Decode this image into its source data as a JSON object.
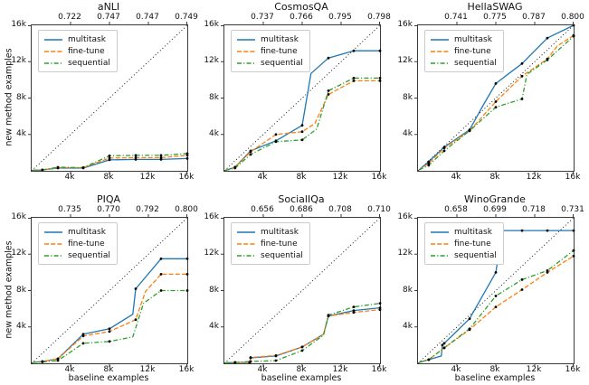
{
  "legend": {
    "entries": [
      "multitask",
      "fine-tune",
      "sequential"
    ]
  },
  "series_styles": [
    {
      "name": "multitask",
      "color": "#1f77b4",
      "dash": "solid"
    },
    {
      "name": "fine-tune",
      "color": "#ff7f0e",
      "dash": "dashed"
    },
    {
      "name": "sequential",
      "color": "#2ca02c",
      "dash": "dashdot"
    }
  ],
  "axes": {
    "xlabel": "baseline examples",
    "ylabel": "new method examples",
    "x_tick_labels": [
      "4k",
      "8k",
      "12k",
      "16k"
    ],
    "y_tick_labels": [
      "16k",
      "12k",
      "8k",
      "4k"
    ],
    "xlim": [
      0,
      16000
    ],
    "ylim": [
      0,
      16000
    ],
    "diagonal_reference_line": "dotted black y=x",
    "units": "points are in thousands of examples"
  },
  "marker": {
    "color": "#000000",
    "x_positions_k": [
      1.1,
      2.7,
      5.3,
      8,
      10.7,
      13.3,
      16
    ]
  },
  "chart_data": [
    {
      "type": "line",
      "title": "aNLI",
      "top_ticks": [
        "0.722",
        "0.747",
        "0.747",
        "0.749"
      ],
      "series": [
        {
          "name": "multitask",
          "points_k": [
            [
              0.1,
              0.05
            ],
            [
              1.1,
              0.1
            ],
            [
              2.7,
              0.3
            ],
            [
              5.3,
              0.3
            ],
            [
              8,
              1.2
            ],
            [
              10.7,
              1.25
            ],
            [
              13.3,
              1.25
            ],
            [
              16,
              1.35
            ]
          ]
        },
        {
          "name": "fine-tune",
          "points_k": [
            [
              0.1,
              0.05
            ],
            [
              1.1,
              0.1
            ],
            [
              2.7,
              0.35
            ],
            [
              5.3,
              0.35
            ],
            [
              8,
              1.4
            ],
            [
              10.7,
              1.45
            ],
            [
              13.3,
              1.45
            ],
            [
              16,
              1.7
            ]
          ]
        },
        {
          "name": "sequential",
          "points_k": [
            [
              0.1,
              0.05
            ],
            [
              1.1,
              0.1
            ],
            [
              2.7,
              0.4
            ],
            [
              5.3,
              0.35
            ],
            [
              8,
              1.65
            ],
            [
              10.7,
              1.7
            ],
            [
              13.3,
              1.7
            ],
            [
              16,
              1.9
            ]
          ]
        }
      ]
    },
    {
      "type": "line",
      "title": "CosmosQA",
      "top_ticks": [
        "0.737",
        "0.766",
        "0.795",
        "0.798"
      ],
      "series": [
        {
          "name": "multitask",
          "points_k": [
            [
              0.1,
              0.05
            ],
            [
              1.1,
              0.4
            ],
            [
              2.7,
              2.2
            ],
            [
              5.3,
              3.3
            ],
            [
              8,
              5.0
            ],
            [
              8.9,
              10.7
            ],
            [
              10.7,
              12.4
            ],
            [
              13.3,
              13.2
            ],
            [
              16,
              13.2
            ]
          ]
        },
        {
          "name": "fine-tune",
          "points_k": [
            [
              0.1,
              0.05
            ],
            [
              1.1,
              0.4
            ],
            [
              2.7,
              2.1
            ],
            [
              5.3,
              4.0
            ],
            [
              8,
              4.3
            ],
            [
              9.3,
              5.2
            ],
            [
              10.7,
              8.4
            ],
            [
              13.3,
              9.9
            ],
            [
              16,
              9.9
            ]
          ]
        },
        {
          "name": "sequential",
          "points_k": [
            [
              0.1,
              0.05
            ],
            [
              1.1,
              0.3
            ],
            [
              2.7,
              1.8
            ],
            [
              5.3,
              3.2
            ],
            [
              8,
              3.4
            ],
            [
              9.5,
              4.6
            ],
            [
              10.7,
              8.8
            ],
            [
              13.3,
              10.2
            ],
            [
              16,
              10.2
            ]
          ]
        }
      ]
    },
    {
      "type": "line",
      "title": "HellaSWAG",
      "top_ticks": [
        "0.741",
        "0.775",
        "0.787",
        "0.800"
      ],
      "series": [
        {
          "name": "multitask",
          "points_k": [
            [
              0.1,
              0.1
            ],
            [
              1.1,
              1.0
            ],
            [
              2.7,
              2.6
            ],
            [
              5.3,
              4.5
            ],
            [
              6.7,
              7.2
            ],
            [
              8,
              9.6
            ],
            [
              10.7,
              11.8
            ],
            [
              13.3,
              14.6
            ],
            [
              16,
              16
            ]
          ]
        },
        {
          "name": "fine-tune",
          "points_k": [
            [
              0.1,
              0.1
            ],
            [
              1.1,
              0.8
            ],
            [
              2.7,
              2.5
            ],
            [
              5.3,
              4.4
            ],
            [
              8,
              7.6
            ],
            [
              10.7,
              10.4
            ],
            [
              13.3,
              12.3
            ],
            [
              14.3,
              13.7
            ],
            [
              16,
              14.9
            ]
          ]
        },
        {
          "name": "sequential",
          "points_k": [
            [
              0.1,
              0.1
            ],
            [
              1.1,
              0.6
            ],
            [
              2.7,
              2.2
            ],
            [
              5.3,
              4.4
            ],
            [
              8,
              7.0
            ],
            [
              10.7,
              7.9
            ],
            [
              11.2,
              10.6
            ],
            [
              13.3,
              12.2
            ],
            [
              16,
              14.8
            ]
          ]
        }
      ]
    },
    {
      "type": "line",
      "title": "PIQA",
      "top_ticks": [
        "0.735",
        "0.770",
        "0.792",
        "0.800"
      ],
      "series": [
        {
          "name": "multitask",
          "points_k": [
            [
              0.1,
              0.1
            ],
            [
              1.1,
              0.2
            ],
            [
              2.7,
              0.5
            ],
            [
              5.3,
              3.2
            ],
            [
              8,
              3.8
            ],
            [
              10.4,
              5.4
            ],
            [
              10.7,
              8.2
            ],
            [
              13.3,
              11.5
            ],
            [
              16,
              11.5
            ]
          ]
        },
        {
          "name": "fine-tune",
          "points_k": [
            [
              0.1,
              0.1
            ],
            [
              1.1,
              0.2
            ],
            [
              2.7,
              0.5
            ],
            [
              5.3,
              3.0
            ],
            [
              8,
              3.5
            ],
            [
              10.7,
              4.8
            ],
            [
              11.7,
              7.9
            ],
            [
              13.3,
              9.8
            ],
            [
              16,
              9.8
            ]
          ]
        },
        {
          "name": "sequential",
          "points_k": [
            [
              0.1,
              0.1
            ],
            [
              1.1,
              0.15
            ],
            [
              2.7,
              0.3
            ],
            [
              5.3,
              2.2
            ],
            [
              8,
              2.4
            ],
            [
              10.4,
              2.9
            ],
            [
              11.5,
              6.6
            ],
            [
              13.3,
              8.0
            ],
            [
              16,
              8.0
            ]
          ]
        }
      ]
    },
    {
      "type": "line",
      "title": "SocialIQa",
      "top_ticks": [
        "0.656",
        "0.686",
        "0.708",
        "0.710"
      ],
      "series": [
        {
          "name": "multitask",
          "points_k": [
            [
              0.1,
              0.05
            ],
            [
              1.1,
              0.1
            ],
            [
              2.6,
              0.1
            ],
            [
              2.7,
              0.6
            ],
            [
              5.3,
              0.8
            ],
            [
              8,
              1.8
            ],
            [
              10.2,
              3.2
            ],
            [
              10.7,
              5.2
            ],
            [
              13.3,
              5.8
            ],
            [
              16,
              6.1
            ]
          ]
        },
        {
          "name": "fine-tune",
          "points_k": [
            [
              0.1,
              0.05
            ],
            [
              1.1,
              0.1
            ],
            [
              2.6,
              0.1
            ],
            [
              2.7,
              0.65
            ],
            [
              5.3,
              0.85
            ],
            [
              8,
              1.8
            ],
            [
              10.2,
              3.2
            ],
            [
              10.7,
              5.2
            ],
            [
              13.3,
              5.6
            ],
            [
              16,
              5.9
            ]
          ]
        },
        {
          "name": "sequential",
          "points_k": [
            [
              0.1,
              0.05
            ],
            [
              1.1,
              0.1
            ],
            [
              2.7,
              0.2
            ],
            [
              5.3,
              0.3
            ],
            [
              8,
              1.4
            ],
            [
              10.2,
              3.1
            ],
            [
              10.7,
              5.3
            ],
            [
              13.3,
              6.2
            ],
            [
              16,
              6.6
            ]
          ]
        }
      ]
    },
    {
      "type": "line",
      "title": "WinoGrande",
      "top_ticks": [
        "0.658",
        "0.699",
        "0.718",
        "0.731"
      ],
      "series": [
        {
          "name": "multitask",
          "points_k": [
            [
              0.1,
              0.1
            ],
            [
              1.1,
              0.4
            ],
            [
              2.4,
              0.8
            ],
            [
              2.5,
              2.0
            ],
            [
              2.7,
              2.2
            ],
            [
              5.3,
              4.9
            ],
            [
              8,
              10.0
            ],
            [
              8.7,
              14.6
            ],
            [
              10.7,
              14.6
            ],
            [
              13.3,
              14.6
            ],
            [
              16,
              14.6
            ]
          ]
        },
        {
          "name": "fine-tune",
          "points_k": [
            [
              0.1,
              0.1
            ],
            [
              1.1,
              0.4
            ],
            [
              2.7,
              1.7
            ],
            [
              5.3,
              3.7
            ],
            [
              8,
              6.2
            ],
            [
              10.7,
              8.1
            ],
            [
              13.3,
              10.0
            ],
            [
              16,
              11.8
            ]
          ]
        },
        {
          "name": "sequential",
          "points_k": [
            [
              0.1,
              0.1
            ],
            [
              1.1,
              0.4
            ],
            [
              2.7,
              1.7
            ],
            [
              5.3,
              3.8
            ],
            [
              8,
              7.4
            ],
            [
              10.7,
              9.2
            ],
            [
              13.3,
              10.2
            ],
            [
              16,
              12.4
            ]
          ]
        }
      ]
    }
  ]
}
